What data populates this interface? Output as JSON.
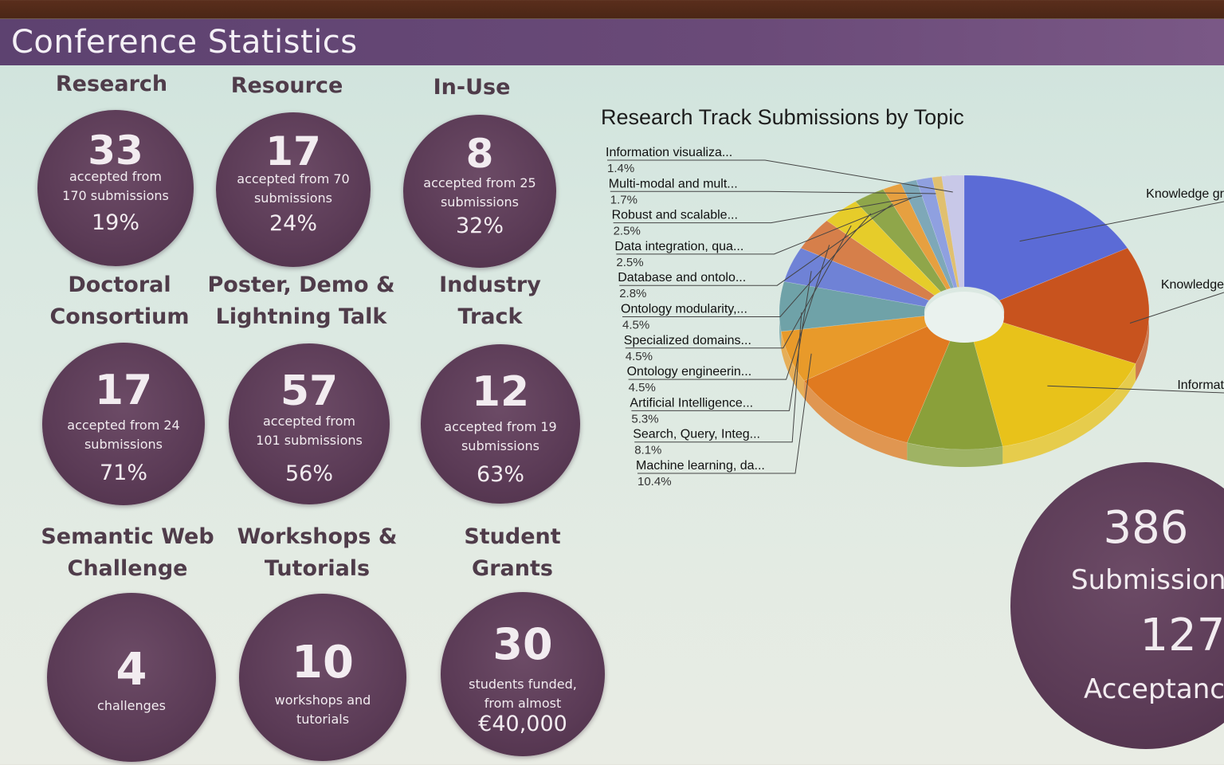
{
  "title": "Conference Statistics",
  "stats": [
    {
      "label": "Research",
      "number": "33",
      "sub": "accepted from\n170 submissions",
      "pct": "19%"
    },
    {
      "label": "Resource",
      "number": "17",
      "sub": "accepted from 70\nsubmissions",
      "pct": "24%"
    },
    {
      "label": "In-Use",
      "number": "8",
      "sub": "accepted from 25\nsubmissions",
      "pct": "32%"
    },
    {
      "label": "Doctoral\nConsortium",
      "number": "17",
      "sub": "accepted from 24\nsubmissions",
      "pct": "71%"
    },
    {
      "label": "Poster, Demo &\nLightning Talk",
      "number": "57",
      "sub": "accepted from\n101 submissions",
      "pct": "56%"
    },
    {
      "label": "Industry\nTrack",
      "number": "12",
      "sub": "accepted from 19\nsubmissions",
      "pct": "63%"
    },
    {
      "label": "Semantic Web\nChallenge",
      "number": "4",
      "sub": "challenges",
      "pct": ""
    },
    {
      "label": "Workshops &\nTutorials",
      "number": "10",
      "sub": "workshops and\ntutorials",
      "pct": ""
    },
    {
      "label": "Student\nGrants",
      "number": "30",
      "sub": "students funded,\nfrom almost",
      "pct": "€40,000"
    }
  ],
  "summary": {
    "submissions_number": "386",
    "submissions_label": "Submissions",
    "accepted_number": "127",
    "accepted_label": "Acceptanc"
  },
  "chart_data": {
    "type": "pie",
    "title": "Research Track Submissions by Topic",
    "slices": [
      {
        "label": "Knowledge gr",
        "value": null,
        "color": "#5b6bd6"
      },
      {
        "label": "Knowledge",
        "value": null,
        "color": "#c8531e"
      },
      {
        "label": "Informat",
        "value": null,
        "color": "#e8c21a"
      },
      {
        "label": "",
        "value": null,
        "color": "#8aa03a"
      },
      {
        "label": "",
        "value": null,
        "color": "#e07a20"
      },
      {
        "label": "Machine learning, da...",
        "value": 10.4,
        "color": "#e89a2a"
      },
      {
        "label": "Search, Query, Integ...",
        "value": 8.1,
        "color": "#6fa2a8"
      },
      {
        "label": "Artificial Intelligence...",
        "value": 5.3,
        "color": "#6f82d6"
      },
      {
        "label": "Ontology engineerin...",
        "value": 4.5,
        "color": "#d67f4a"
      },
      {
        "label": "Specialized domains...",
        "value": 4.5,
        "color": "#e6cc2a"
      },
      {
        "label": "Ontology modularity,...",
        "value": 4.5,
        "color": "#8fa64a"
      },
      {
        "label": "Database and ontolo...",
        "value": 2.8,
        "color": "#e6a040"
      },
      {
        "label": "Data integration, qua...",
        "value": 2.5,
        "color": "#7ea8b8"
      },
      {
        "label": "Robust and scalable...",
        "value": 2.5,
        "color": "#8fa0e0"
      },
      {
        "label": "Multi-modal and mult...",
        "value": 1.7,
        "color": "#e0c070"
      },
      {
        "label": "Information visualiza...",
        "value": 1.4,
        "color": "#c8c8e8"
      }
    ],
    "left_labels": [
      {
        "label": "Information visualiza...",
        "pct": "1.4%"
      },
      {
        "label": "Multi-modal and mult...",
        "pct": "1.7%"
      },
      {
        "label": "Robust and scalable...",
        "pct": "2.5%"
      },
      {
        "label": "Data integration, qua...",
        "pct": "2.5%"
      },
      {
        "label": "Database and ontolo...",
        "pct": "2.8%"
      },
      {
        "label": "Ontology modularity,...",
        "pct": "4.5%"
      },
      {
        "label": "Specialized domains...",
        "pct": "4.5%"
      },
      {
        "label": "Ontology engineerin...",
        "pct": "4.5%"
      },
      {
        "label": "Artificial Intelligence...",
        "pct": "5.3%"
      },
      {
        "label": "Search, Query, Integ...",
        "pct": "8.1%"
      },
      {
        "label": "Machine learning, da...",
        "pct": "10.4%"
      }
    ],
    "right_labels": [
      "Knowledge gr",
      "Knowledge",
      "Informat"
    ]
  }
}
